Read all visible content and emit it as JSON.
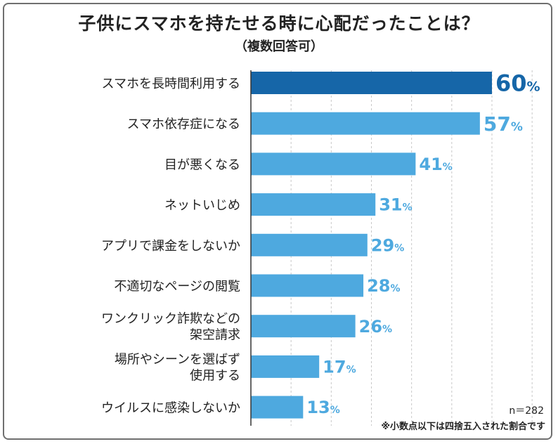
{
  "title": "子供にスマホを持たせる時に心配だったことは？",
  "subtitle": "（複数回答可）",
  "sample_size": "n＝282",
  "footnote": "※小数点以下は四捨五入された割合です",
  "colors": {
    "highlight": "#1666a8",
    "bar": "#4ea9df",
    "grid": "#c8c8c8",
    "axis": "#333333"
  },
  "chart_data": {
    "type": "bar",
    "orientation": "horizontal",
    "categories": [
      [
        "スマホを長時間利用する"
      ],
      [
        "スマホ依存症になる"
      ],
      [
        "目が悪くなる"
      ],
      [
        "ネットいじめ"
      ],
      [
        "アプリで課金をしないか"
      ],
      [
        "不適切なページの閲覧"
      ],
      [
        "ワンクリック詐欺などの",
        "架空請求"
      ],
      [
        "場所やシーンを選ばず",
        "使用する"
      ],
      [
        "ウイルスに感染しないか"
      ]
    ],
    "values": [
      60,
      57,
      41,
      31,
      29,
      28,
      26,
      17,
      13
    ],
    "unit": "%",
    "highlight_index": 0,
    "xlim": [
      0,
      60
    ],
    "grid": true
  }
}
